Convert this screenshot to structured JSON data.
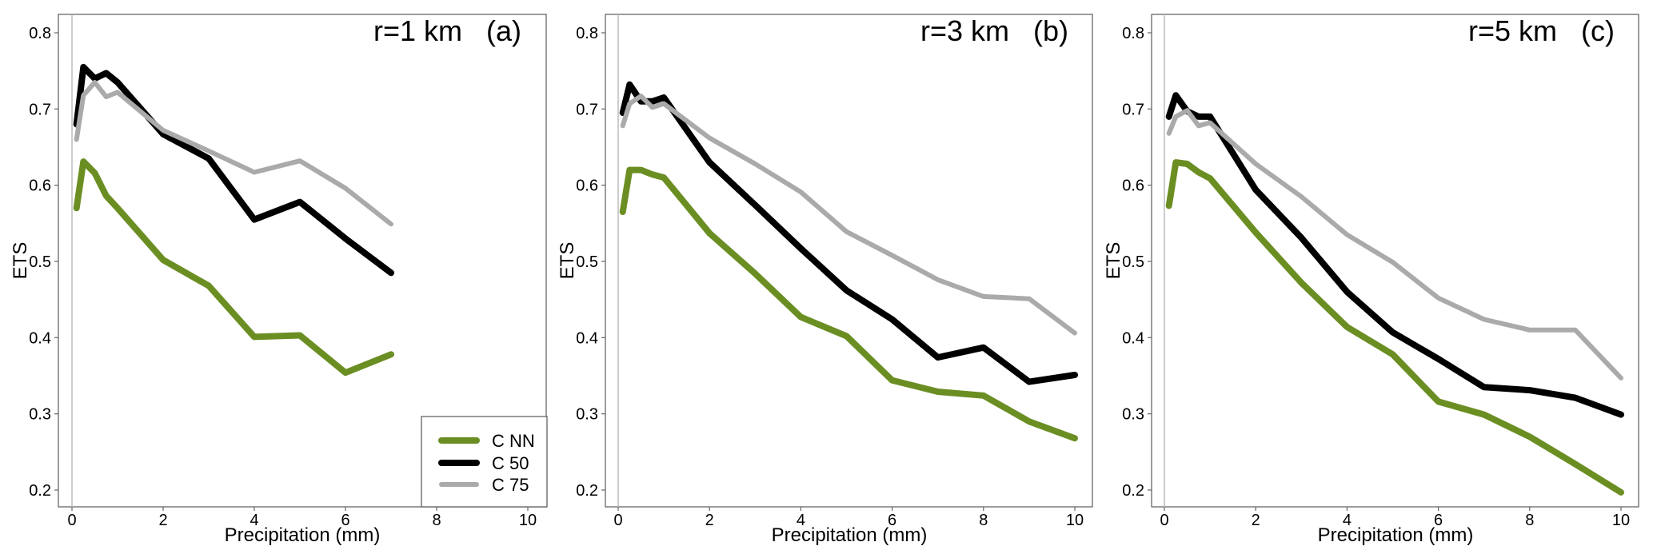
{
  "chart_data": [
    {
      "type": "line",
      "title": "r=1 km   (a)",
      "xlabel": "Precipitation (mm)",
      "ylabel": "ETS",
      "xlim": [
        0,
        10
      ],
      "ylim": [
        0.18,
        0.82
      ],
      "xticks": [
        0,
        2,
        4,
        6,
        8,
        10
      ],
      "yticks": [
        0.2,
        0.3,
        0.4,
        0.5,
        0.6,
        0.7,
        0.8
      ],
      "xtick_labels": [
        "0",
        "2",
        "4",
        "6",
        "8",
        "10"
      ],
      "ytick_labels": [
        "0.2",
        "0.3",
        "0.4",
        "0.5",
        "0.6",
        "0.7",
        "0.8"
      ],
      "grid": false,
      "legend": {
        "position": "bottom-right",
        "entries": [
          "C NN",
          "C 50",
          "C 75"
        ]
      },
      "x": [
        0.1,
        0.25,
        0.5,
        0.75,
        1,
        2,
        3,
        4,
        5,
        6,
        7
      ],
      "series": [
        {
          "name": "C NN",
          "color": "#6b8e23",
          "values": [
            0.57,
            0.631,
            0.616,
            0.586,
            0.57,
            0.502,
            0.468,
            0.401,
            0.403,
            0.354,
            0.378
          ]
        },
        {
          "name": "C 50",
          "color": "#000000",
          "values": [
            0.68,
            0.755,
            0.74,
            0.747,
            0.735,
            0.667,
            0.635,
            0.555,
            0.578,
            0.53,
            0.485
          ]
        },
        {
          "name": "C 75",
          "color": "#aaaaaa",
          "values": [
            0.66,
            0.718,
            0.735,
            0.716,
            0.722,
            0.672,
            0.645,
            0.617,
            0.632,
            0.596,
            0.549
          ]
        }
      ]
    },
    {
      "type": "line",
      "title": "r=3 km   (b)",
      "xlabel": "Precipitation (mm)",
      "ylabel": "ETS",
      "xlim": [
        0,
        10
      ],
      "ylim": [
        0.18,
        0.82
      ],
      "xticks": [
        0,
        2,
        4,
        6,
        8,
        10
      ],
      "yticks": [
        0.2,
        0.3,
        0.4,
        0.5,
        0.6,
        0.7,
        0.8
      ],
      "xtick_labels": [
        "0",
        "2",
        "4",
        "6",
        "8",
        "10"
      ],
      "ytick_labels": [
        "0.2",
        "0.3",
        "0.4",
        "0.5",
        "0.6",
        "0.7",
        "0.8"
      ],
      "grid": false,
      "x": [
        0.1,
        0.25,
        0.5,
        0.75,
        1,
        2,
        3,
        4,
        5,
        6,
        7,
        8,
        9,
        10
      ],
      "series": [
        {
          "name": "C NN",
          "color": "#6b8e23",
          "values": [
            0.565,
            0.62,
            0.62,
            0.614,
            0.61,
            0.537,
            0.484,
            0.427,
            0.402,
            0.344,
            0.329,
            0.324,
            0.29,
            0.268
          ]
        },
        {
          "name": "C 50",
          "color": "#000000",
          "values": [
            0.695,
            0.732,
            0.71,
            0.71,
            0.715,
            0.63,
            0.574,
            0.517,
            0.462,
            0.424,
            0.374,
            0.387,
            0.342,
            0.351
          ]
        },
        {
          "name": "C 75",
          "color": "#aaaaaa",
          "values": [
            0.678,
            0.707,
            0.717,
            0.702,
            0.707,
            0.662,
            0.628,
            0.591,
            0.539,
            0.508,
            0.476,
            0.454,
            0.451,
            0.406
          ]
        }
      ]
    },
    {
      "type": "line",
      "title": "r=5 km   (c)",
      "xlabel": "Precipitation (mm)",
      "ylabel": "ETS",
      "xlim": [
        0,
        10
      ],
      "ylim": [
        0.18,
        0.82
      ],
      "xticks": [
        0,
        2,
        4,
        6,
        8,
        10
      ],
      "yticks": [
        0.2,
        0.3,
        0.4,
        0.5,
        0.6,
        0.7,
        0.8
      ],
      "xtick_labels": [
        "0",
        "2",
        "4",
        "6",
        "8",
        "10"
      ],
      "ytick_labels": [
        "0.2",
        "0.3",
        "0.4",
        "0.5",
        "0.6",
        "0.7",
        "0.8"
      ],
      "grid": false,
      "x": [
        0.1,
        0.25,
        0.5,
        0.75,
        1,
        2,
        3,
        4,
        5,
        6,
        7,
        8,
        9,
        10
      ],
      "series": [
        {
          "name": "C NN",
          "color": "#6b8e23",
          "values": [
            0.573,
            0.63,
            0.628,
            0.617,
            0.609,
            0.538,
            0.472,
            0.414,
            0.378,
            0.316,
            0.299,
            0.27,
            0.234,
            0.197
          ]
        },
        {
          "name": "C 50",
          "color": "#000000",
          "values": [
            0.69,
            0.718,
            0.697,
            0.69,
            0.69,
            0.594,
            0.531,
            0.46,
            0.407,
            0.372,
            0.335,
            0.331,
            0.321,
            0.299
          ]
        },
        {
          "name": "C 75",
          "color": "#aaaaaa",
          "values": [
            0.668,
            0.69,
            0.698,
            0.678,
            0.682,
            0.628,
            0.585,
            0.535,
            0.499,
            0.452,
            0.424,
            0.41,
            0.41,
            0.347
          ]
        }
      ]
    }
  ]
}
